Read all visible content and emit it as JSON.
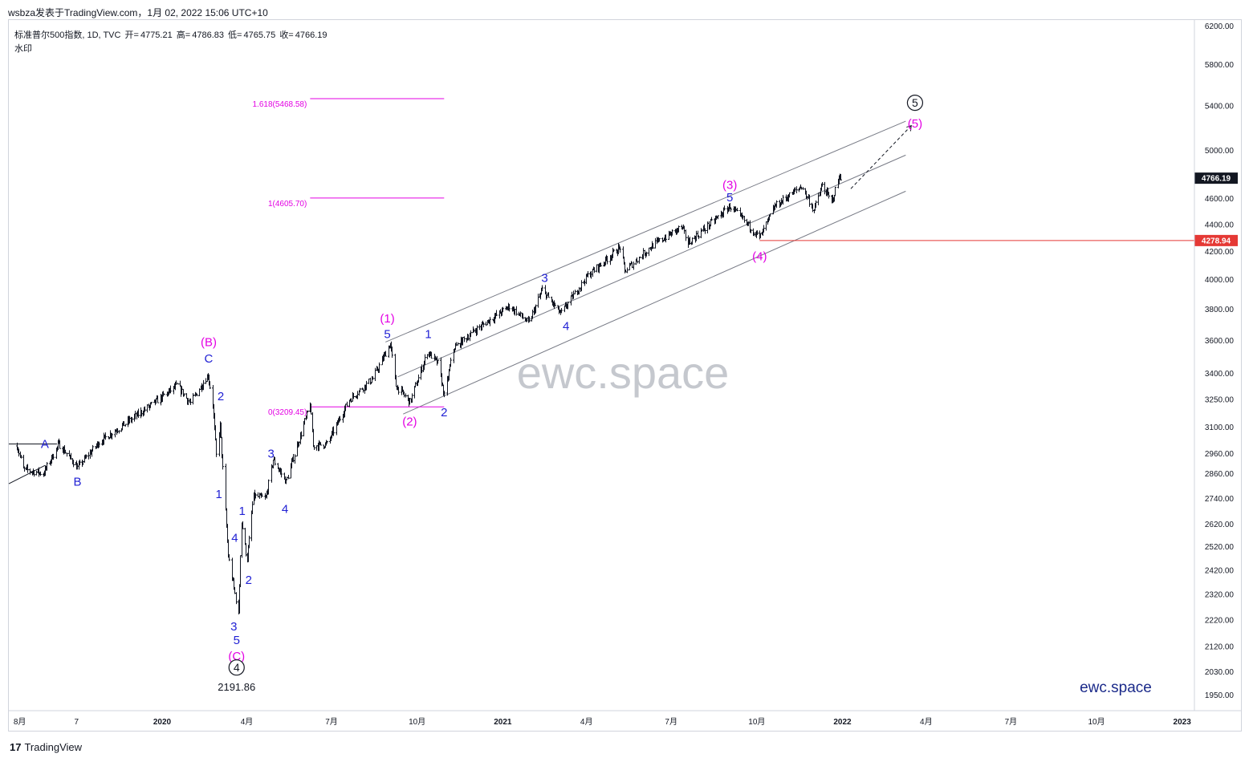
{
  "header": {
    "publisher_line": "wsbza发表于TradingView.com，1月 02, 2022 15:06 UTC+10"
  },
  "symbol_bar": {
    "name": "标准普尔500指数, 1D, TVC",
    "open_label": "开=",
    "open": "4775.21",
    "high_label": "高=",
    "high": "4786.83",
    "low_label": "低=",
    "low": "4765.75",
    "close_label": "收=",
    "close": "4766.19"
  },
  "watermark_label": "水印",
  "footer": {
    "brand": "TradingView",
    "logo_glyph": "17"
  },
  "colors": {
    "price_bar": "#131722",
    "wave_blue": "#2121d4",
    "wave_magenta": "#e300e3",
    "channel": "#787b86",
    "hline_red": "#e53935",
    "fib": "#e300e3",
    "watermark": "#b2b5be"
  },
  "chart_data": {
    "type": "ohlc",
    "title": "标准普尔500指数, 1D, TVC",
    "y_axis": {
      "scale": "log",
      "ylim": [
        1900,
        6300
      ],
      "ticks": [
        "6200.00",
        "5800.00",
        "5400.00",
        "5000.00",
        "4600.00",
        "4400.00",
        "4200.00",
        "4000.00",
        "3800.00",
        "3600.00",
        "3400.00",
        "3250.00",
        "3100.00",
        "2960.00",
        "2860.00",
        "2740.00",
        "2620.00",
        "2520.00",
        "2420.00",
        "2320.00",
        "2220.00",
        "2120.00",
        "2030.00",
        "1950.00"
      ]
    },
    "x_axis": {
      "ticks": [
        "8月",
        "7",
        "2020",
        "4月",
        "7月",
        "10月",
        "2021",
        "4月",
        "7月",
        "10月",
        "2022",
        "4月",
        "7月",
        "10月",
        "2023"
      ]
    },
    "close_series": [
      {
        "x": "2019-07-29",
        "y": 3000
      },
      {
        "x": "2019-08-05",
        "y": 2880
      },
      {
        "x": "2019-08-26",
        "y": 2860
      },
      {
        "x": "2019-09-12",
        "y": 3010
      },
      {
        "x": "2019-10-02",
        "y": 2890
      },
      {
        "x": "2019-10-25",
        "y": 3020
      },
      {
        "x": "2019-11-20",
        "y": 3110
      },
      {
        "x": "2019-12-20",
        "y": 3220
      },
      {
        "x": "2020-01-17",
        "y": 3330
      },
      {
        "x": "2020-01-31",
        "y": 3230
      },
      {
        "x": "2020-02-19",
        "y": 3390
      },
      {
        "x": "2020-02-24",
        "y": 3225
      },
      {
        "x": "2020-02-28",
        "y": 2950
      },
      {
        "x": "2020-03-03",
        "y": 3110
      },
      {
        "x": "2020-03-12",
        "y": 2480
      },
      {
        "x": "2020-03-16",
        "y": 2390
      },
      {
        "x": "2020-03-23",
        "y": 2237
      },
      {
        "x": "2020-03-26",
        "y": 2630
      },
      {
        "x": "2020-04-01",
        "y": 2470
      },
      {
        "x": "2020-04-08",
        "y": 2750
      },
      {
        "x": "2020-04-21",
        "y": 2740
      },
      {
        "x": "2020-04-29",
        "y": 2930
      },
      {
        "x": "2020-05-13",
        "y": 2820
      },
      {
        "x": "2020-06-08",
        "y": 3230
      },
      {
        "x": "2020-06-11",
        "y": 3000
      },
      {
        "x": "2020-06-26",
        "y": 3010
      },
      {
        "x": "2020-07-20",
        "y": 3250
      },
      {
        "x": "2020-08-14",
        "y": 3370
      },
      {
        "x": "2020-09-02",
        "y": 3580
      },
      {
        "x": "2020-09-08",
        "y": 3330
      },
      {
        "x": "2020-09-23",
        "y": 3237
      },
      {
        "x": "2020-10-12",
        "y": 3530
      },
      {
        "x": "2020-10-23",
        "y": 3460
      },
      {
        "x": "2020-10-30",
        "y": 3270
      },
      {
        "x": "2020-11-09",
        "y": 3550
      },
      {
        "x": "2020-12-01",
        "y": 3660
      },
      {
        "x": "2021-01-08",
        "y": 3820
      },
      {
        "x": "2021-01-29",
        "y": 3710
      },
      {
        "x": "2021-02-12",
        "y": 3930
      },
      {
        "x": "2021-03-04",
        "y": 3770
      },
      {
        "x": "2021-04-01",
        "y": 4020
      },
      {
        "x": "2021-05-07",
        "y": 4230
      },
      {
        "x": "2021-05-12",
        "y": 4060
      },
      {
        "x": "2021-06-10",
        "y": 4240
      },
      {
        "x": "2021-07-12",
        "y": 4380
      },
      {
        "x": "2021-07-19",
        "y": 4260
      },
      {
        "x": "2021-09-02",
        "y": 4540
      },
      {
        "x": "2021-09-17",
        "y": 4430
      },
      {
        "x": "2021-10-04",
        "y": 4300
      },
      {
        "x": "2021-10-20",
        "y": 4540
      },
      {
        "x": "2021-11-18",
        "y": 4700
      },
      {
        "x": "2021-12-01",
        "y": 4510
      },
      {
        "x": "2021-12-10",
        "y": 4710
      },
      {
        "x": "2021-12-20",
        "y": 4570
      },
      {
        "x": "2021-12-29",
        "y": 4793
      },
      {
        "x": "2021-12-31",
        "y": 4766.19
      }
    ],
    "price_labels": {
      "last": "4766.19",
      "level": "4278.94"
    },
    "horizontal_line": {
      "value": 4278.94
    },
    "fibonacci": [
      {
        "label": "1.618(5468.58)",
        "value": 5468.58
      },
      {
        "label": "1(4605.70)",
        "value": 4605.7
      },
      {
        "label": "0(3209.45)",
        "value": 3209.45
      }
    ],
    "low_annotation": "2191.86",
    "wave_labels": [
      {
        "text": "A",
        "color": "blue",
        "x": "2019-08-28",
        "y": 3010
      },
      {
        "text": "B",
        "color": "blue",
        "x": "2019-10-02",
        "y": 2820
      },
      {
        "text": "(B)",
        "color": "magenta",
        "x": "2020-02-20",
        "y": 3590
      },
      {
        "text": "C",
        "color": "blue",
        "x": "2020-02-20",
        "y": 3490
      },
      {
        "text": "2",
        "color": "blue",
        "x": "2020-03-04",
        "y": 3270
      },
      {
        "text": "1",
        "color": "blue",
        "x": "2020-03-02",
        "y": 2760
      },
      {
        "text": "4",
        "color": "blue",
        "x": "2020-03-19",
        "y": 2560
      },
      {
        "text": "3",
        "color": "blue",
        "x": "2020-03-18",
        "y": 2195
      },
      {
        "text": "5",
        "color": "blue",
        "x": "2020-03-21",
        "y": 2145
      },
      {
        "text": "(C)",
        "color": "magenta",
        "x": "2020-03-21",
        "y": 2085
      },
      {
        "text": "1",
        "color": "blue",
        "x": "2020-03-27",
        "y": 2680
      },
      {
        "text": "2",
        "color": "blue",
        "x": "2020-04-03",
        "y": 2380
      },
      {
        "text": "3",
        "color": "blue",
        "x": "2020-04-27",
        "y": 2960
      },
      {
        "text": "4",
        "color": "blue",
        "x": "2020-05-12",
        "y": 2690
      },
      {
        "text": "(1)",
        "color": "magenta",
        "x": "2020-08-30",
        "y": 3740
      },
      {
        "text": "5",
        "color": "blue",
        "x": "2020-08-30",
        "y": 3640
      },
      {
        "text": "(2)",
        "color": "magenta",
        "x": "2020-09-23",
        "y": 3130
      },
      {
        "text": "1",
        "color": "blue",
        "x": "2020-10-13",
        "y": 3640
      },
      {
        "text": "2",
        "color": "blue",
        "x": "2020-10-30",
        "y": 3180
      },
      {
        "text": "3",
        "color": "blue",
        "x": "2021-02-15",
        "y": 4010
      },
      {
        "text": "4",
        "color": "blue",
        "x": "2021-03-10",
        "y": 3690
      },
      {
        "text": "(3)",
        "color": "magenta",
        "x": "2021-09-02",
        "y": 4710
      },
      {
        "text": "5",
        "color": "blue",
        "x": "2021-09-02",
        "y": 4610
      },
      {
        "text": "(4)",
        "color": "magenta",
        "x": "2021-10-04",
        "y": 4165
      },
      {
        "text": "(5)",
        "color": "magenta",
        "x": "2022-03-20",
        "y": 5240
      }
    ],
    "circled_labels": [
      {
        "text": "4",
        "x": "2020-03-21",
        "y": 2045
      },
      {
        "text": "5",
        "x": "2022-03-20",
        "y": 5430
      }
    ],
    "watermark_text": "ewc.space",
    "brand_corner": "ewc.space"
  }
}
